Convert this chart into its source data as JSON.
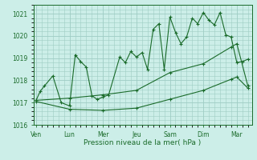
{
  "xlabel": "Pression niveau de la mer( hPa )",
  "bg_color": "#cceee8",
  "grid_color": "#9eccc4",
  "line_color": "#1a6b2a",
  "ylim": [
    1016,
    1021.4
  ],
  "yticks": [
    1016,
    1017,
    1018,
    1019,
    1020,
    1021
  ],
  "x_day_labels": [
    "Ven",
    "Lun",
    "Mer",
    "Jeu",
    "Sam",
    "Dim",
    "Mar"
  ],
  "x_day_positions": [
    0,
    1,
    2,
    3,
    4,
    5,
    6
  ],
  "xlim": [
    -0.08,
    6.45
  ],
  "series1_x": [
    0.0,
    0.12,
    0.25,
    0.5,
    0.75,
    1.0,
    1.17,
    1.33,
    1.5,
    1.67,
    1.83,
    2.0,
    2.17,
    2.5,
    2.67,
    2.83,
    3.0,
    3.17,
    3.33,
    3.5,
    3.67,
    3.83,
    4.0,
    4.17,
    4.33,
    4.5,
    4.67,
    4.83,
    5.0,
    5.17,
    5.33,
    5.5,
    5.67,
    5.83,
    6.0,
    6.17,
    6.33
  ],
  "series1_y": [
    1017.1,
    1017.5,
    1017.75,
    1018.2,
    1017.0,
    1016.85,
    1019.15,
    1018.85,
    1018.6,
    1017.3,
    1017.15,
    1017.25,
    1017.35,
    1019.05,
    1018.8,
    1019.3,
    1019.05,
    1019.25,
    1018.5,
    1020.3,
    1020.55,
    1018.5,
    1020.85,
    1020.15,
    1019.65,
    1019.95,
    1020.8,
    1020.55,
    1021.05,
    1020.7,
    1020.5,
    1021.05,
    1020.05,
    1019.95,
    1018.8,
    1018.85,
    1018.95
  ],
  "series2_x": [
    0.0,
    1.0,
    2.0,
    3.0,
    4.0,
    5.0,
    5.83,
    6.0,
    6.33
  ],
  "series2_y": [
    1017.1,
    1017.2,
    1017.35,
    1017.55,
    1018.35,
    1018.75,
    1019.5,
    1019.65,
    1017.75
  ],
  "series3_x": [
    0.0,
    1.0,
    2.0,
    3.0,
    4.0,
    5.0,
    5.83,
    6.0,
    6.33
  ],
  "series3_y": [
    1017.05,
    1016.7,
    1016.65,
    1016.75,
    1017.15,
    1017.55,
    1018.05,
    1018.15,
    1017.65
  ]
}
